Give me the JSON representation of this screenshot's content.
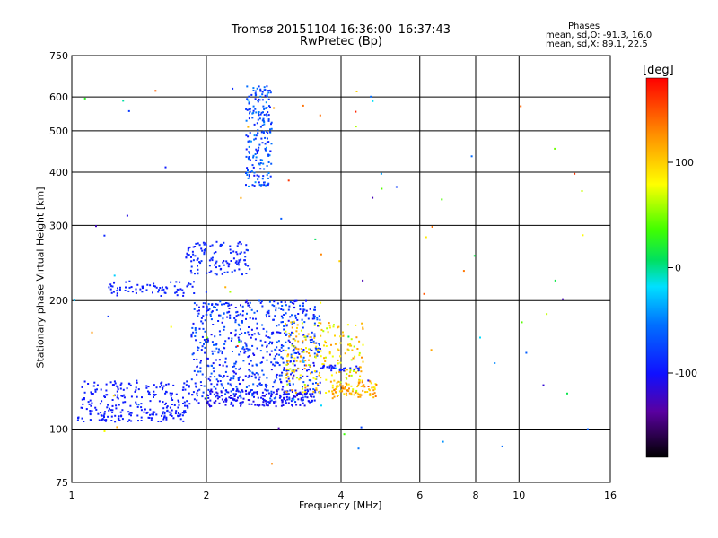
{
  "chart_data": {
    "type": "scatter",
    "title": "Tromsø 20151104 16:36:00–16:37:43",
    "subtitle": "RwPretec (Bp)",
    "xlabel": "Frequency [MHz]",
    "ylabel": "Stationary phase Virtual Height [km]",
    "x_scale": "log2",
    "y_scale": "log",
    "xlim": [
      1,
      16
    ],
    "ylim": [
      75,
      750
    ],
    "x_ticks": [
      "1",
      "2",
      "4",
      "6",
      "8",
      "10",
      "16"
    ],
    "y_ticks": [
      "750",
      "600",
      "500",
      "400",
      "300",
      "200",
      "100",
      "75"
    ],
    "grid": true,
    "stats": {
      "heading": "Phases",
      "line_o": "mean, sd,O: -91.3, 16.0",
      "line_x": "mean, sd,X:  89.1, 22.5"
    },
    "colorbar": {
      "label": "[deg]",
      "range": [
        -180,
        180
      ],
      "ticks": [
        "100",
        "0",
        "-100"
      ],
      "tick_values": [
        100,
        0,
        -100
      ]
    },
    "regions": [
      {
        "x": [
          1.03,
          1.8
        ],
        "y": [
          104,
          112
        ],
        "phase": [
          -100,
          -90
        ],
        "n": 120
      },
      {
        "x": [
          1.05,
          1.9
        ],
        "y": [
          112,
          130
        ],
        "phase": [
          -100,
          -90
        ],
        "n": 150
      },
      {
        "x": [
          1.2,
          1.9
        ],
        "y": [
          205,
          222
        ],
        "phase": [
          -100,
          -85
        ],
        "n": 70
      },
      {
        "x": [
          1.8,
          2.5
        ],
        "y": [
          230,
          275
        ],
        "phase": [
          -100,
          -80
        ],
        "n": 120
      },
      {
        "x": [
          2.45,
          2.8
        ],
        "y": [
          370,
          640
        ],
        "phase": [
          -100,
          -40
        ],
        "n": 200
      },
      {
        "x": [
          1.85,
          3.6
        ],
        "y": [
          115,
          200
        ],
        "phase": [
          -110,
          -60
        ],
        "n": 700
      },
      {
        "x": [
          2.0,
          3.5
        ],
        "y": [
          113,
          124
        ],
        "phase": [
          -115,
          -95
        ],
        "n": 150
      },
      {
        "x": [
          3.0,
          4.5
        ],
        "y": [
          120,
          180
        ],
        "phase": [
          60,
          130
        ],
        "n": 220
      },
      {
        "x": [
          3.8,
          4.8
        ],
        "y": [
          118,
          130
        ],
        "phase": [
          80,
          140
        ],
        "n": 80
      },
      {
        "x": [
          3.6,
          4.4
        ],
        "y": [
          137,
          141
        ],
        "phase": [
          -100,
          -90
        ],
        "n": 30
      },
      {
        "x": [
          1.0,
          14.5
        ],
        "y": [
          80,
          650
        ],
        "phase": [
          -130,
          170
        ],
        "n": 90
      }
    ]
  }
}
